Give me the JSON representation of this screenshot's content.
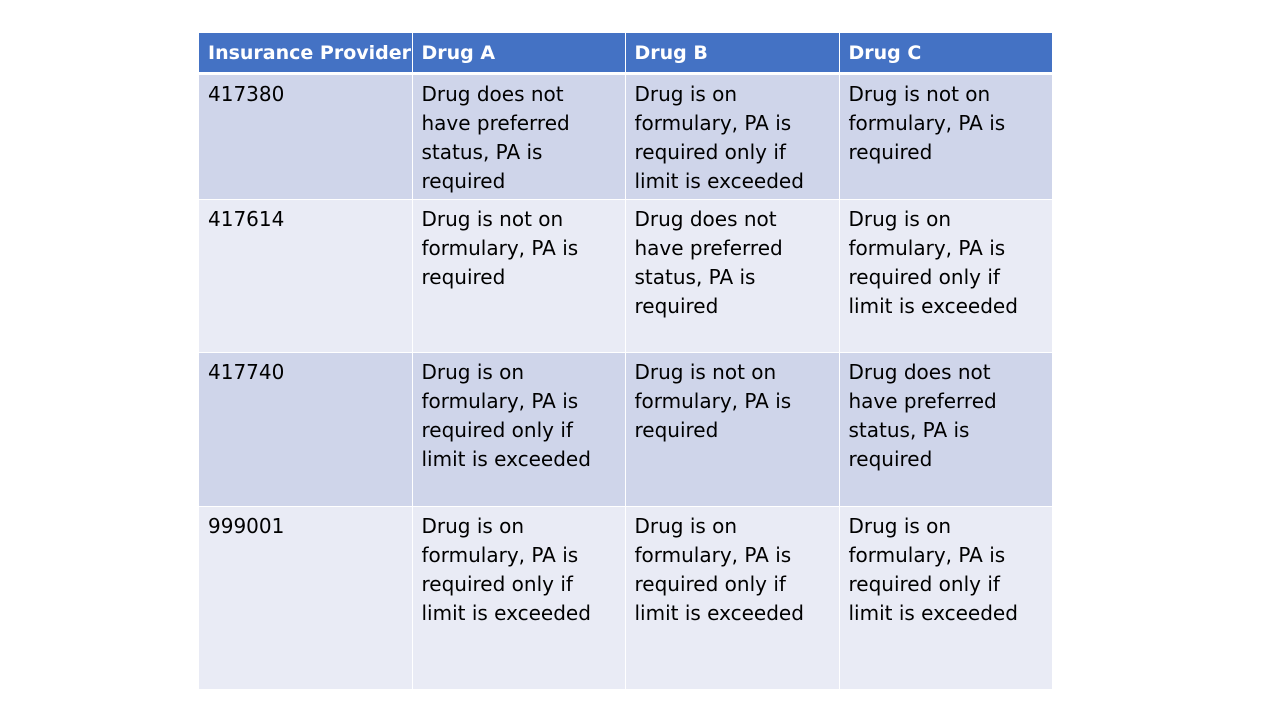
{
  "table": {
    "headers": [
      "Insurance Provider",
      "Drug A",
      "Drug B",
      "Drug C"
    ],
    "rows": [
      {
        "provider": "417380",
        "drug_a": "Drug does not have preferred status, PA is required",
        "drug_b": "Drug is on formulary, PA is required only if limit is exceeded",
        "drug_c": "Drug is not on formulary, PA is required"
      },
      {
        "provider": "417614",
        "drug_a": "Drug is not on formulary, PA is required",
        "drug_b": "Drug does not have preferred status, PA is required",
        "drug_c": "Drug is on formulary, PA is required only if limit is exceeded"
      },
      {
        "provider": "417740",
        "drug_a": "Drug is on formulary, PA is required only if limit is exceeded",
        "drug_b": "Drug is not on formulary, PA is required",
        "drug_c": "Drug does not have preferred status, PA is required"
      },
      {
        "provider": "999001",
        "drug_a": "Drug is on formulary, PA is required only if limit is exceeded",
        "drug_b": "Drug is on formulary, PA is required only if limit is exceeded",
        "drug_c": "Drug is on formulary, PA is required only if limit is exceeded"
      }
    ]
  },
  "colors": {
    "header_bg": "#4472c4",
    "row_band_dark": "#cfd5ea",
    "row_band_light": "#e9ebf5"
  }
}
